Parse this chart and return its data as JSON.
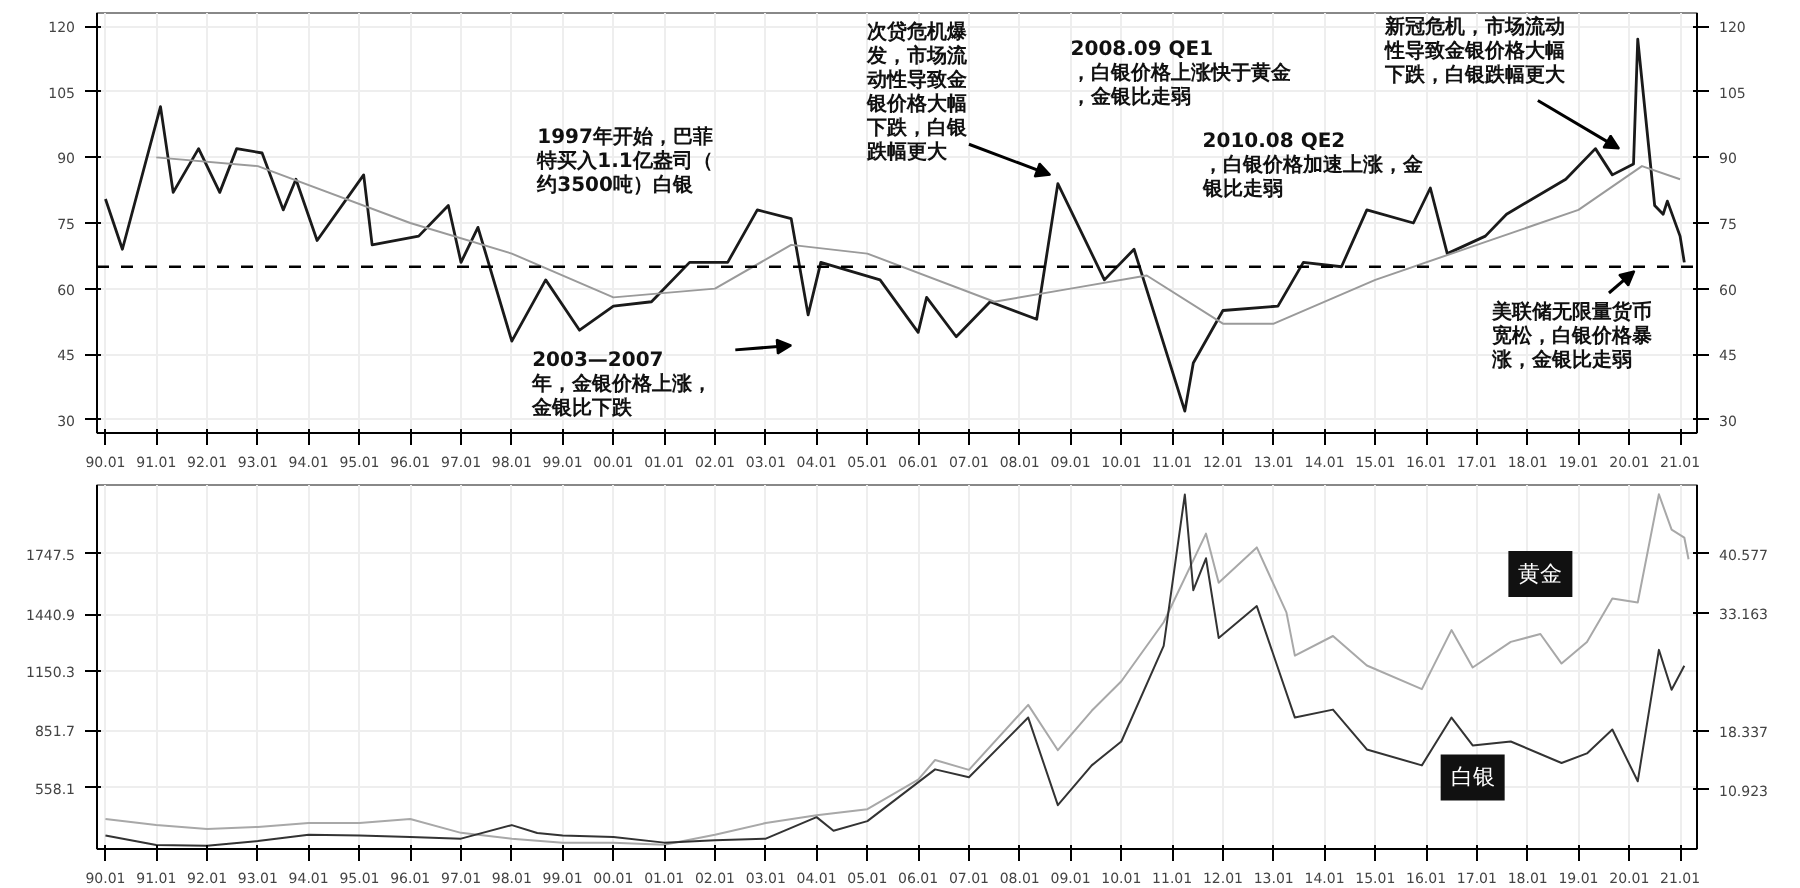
{
  "chart_data": [
    {
      "type": "line",
      "xlim": [
        "1989-11",
        "2021-05"
      ],
      "ylim": [
        27,
        123
      ],
      "yticks": [
        30,
        45,
        60,
        75,
        90,
        105,
        120
      ],
      "y2lim": [
        27,
        123
      ],
      "y2ticks": [
        30,
        45,
        60,
        75,
        90,
        105,
        120
      ],
      "xticks": [
        {
          "value": "1990-01",
          "label": "90.01"
        },
        {
          "value": "1991-01",
          "label": "91.01"
        },
        {
          "value": "1992-01",
          "label": "92.01"
        },
        {
          "value": "1993-01",
          "label": "93.01"
        },
        {
          "value": "1994-01",
          "label": "94.01"
        },
        {
          "value": "1995-01",
          "label": "95.01"
        },
        {
          "value": "1996-01",
          "label": "96.01"
        },
        {
          "value": "1997-01",
          "label": "97.01"
        },
        {
          "value": "1998-01",
          "label": "98.01"
        },
        {
          "value": "1999-01",
          "label": "99.01"
        },
        {
          "value": "2000-01",
          "label": "00.01"
        },
        {
          "value": "2001-01",
          "label": "01.01"
        },
        {
          "value": "2002-01",
          "label": "02.01"
        },
        {
          "value": "2003-01",
          "label": "03.01"
        },
        {
          "value": "2004-01",
          "label": "04.01"
        },
        {
          "value": "2005-01",
          "label": "05.01"
        },
        {
          "value": "2006-01",
          "label": "06.01"
        },
        {
          "value": "2007-01",
          "label": "07.01"
        },
        {
          "value": "2008-01",
          "label": "08.01"
        },
        {
          "value": "2009-01",
          "label": "09.01"
        },
        {
          "value": "2010-01",
          "label": "10.01"
        },
        {
          "value": "2011-01",
          "label": "11.01"
        },
        {
          "value": "2012-01",
          "label": "12.01"
        },
        {
          "value": "2013-01",
          "label": "13.01"
        },
        {
          "value": "2014-01",
          "label": "14.01"
        },
        {
          "value": "2015-01",
          "label": "15.01"
        },
        {
          "value": "2016-01",
          "label": "16.01"
        },
        {
          "value": "2017-01",
          "label": "17.01"
        },
        {
          "value": "2018-01",
          "label": "18.01"
        },
        {
          "value": "2019-01",
          "label": "19.01"
        },
        {
          "value": "2020-01",
          "label": "20.01"
        },
        {
          "value": "2021-01",
          "label": "21.01"
        }
      ],
      "grid": true,
      "series": [
        {
          "color": "#1a1a1a",
          "x": [
            "1990-01",
            "1990-05",
            "1991-02",
            "1991-05",
            "1991-11",
            "1992-04",
            "1992-08",
            "1993-02",
            "1993-07",
            "1993-10",
            "1994-03",
            "1995-02",
            "1995-04",
            "1996-03",
            "1996-10",
            "1997-01",
            "1997-05",
            "1998-01",
            "1998-09",
            "1999-05",
            "2000-01",
            "2000-10",
            "2001-07",
            "2002-04",
            "2002-11",
            "2003-07",
            "2003-11",
            "2004-02",
            "2005-04",
            "2006-01",
            "2006-03",
            "2006-10",
            "2007-06",
            "2008-05",
            "2008-10",
            "2009-05",
            "2009-09",
            "2010-04",
            "2011-04",
            "2011-06",
            "2012-01",
            "2013-02",
            "2013-08",
            "2014-05",
            "2014-11",
            "2015-10",
            "2016-02",
            "2016-06",
            "2017-03",
            "2017-08",
            "2018-10",
            "2019-05",
            "2019-09",
            "2020-02",
            "2020-03",
            "2020-07",
            "2020-09",
            "2020-10",
            "2021-01",
            "2021-02"
          ],
          "values": [
            80.5,
            69,
            101.6,
            82,
            92,
            82,
            92,
            91,
            78,
            85,
            71,
            86,
            70,
            72,
            79,
            66,
            74,
            48,
            62,
            50.5,
            56,
            57,
            66,
            66,
            78,
            76,
            54,
            66,
            62,
            50,
            58,
            49,
            57,
            53,
            84,
            70,
            62,
            69,
            32,
            43,
            55,
            56,
            66,
            65,
            78,
            75,
            83,
            68,
            72,
            77,
            85,
            92,
            86,
            88.5,
            117,
            79,
            77,
            80,
            72,
            66
          ]
        },
        {
          "color": "#9a9a9a",
          "x": [
            "1991-01",
            "1993-01",
            "1996-01",
            "1998-01",
            "2000-01",
            "2002-01",
            "2003-07",
            "2005-01",
            "2007-07",
            "2009-01",
            "2010-07",
            "2012-01",
            "2013-01",
            "2015-01",
            "2017-01",
            "2019-01",
            "2020-04",
            "2021-01"
          ],
          "values": [
            90,
            88,
            75,
            68,
            58,
            60,
            70,
            68,
            57,
            60,
            63,
            52,
            52,
            62,
            70,
            78,
            88,
            85
          ]
        }
      ],
      "ref_lines": [
        {
          "axis": "y",
          "value": 65,
          "line_style": "dashed",
          "color": "#000000"
        }
      ],
      "annotations": [
        "1997年开始，巴菲特买入1.1亿盎司（约3500吨）白银",
        "2003—2007年，金银价格上涨，金银比下跌",
        "次贷危机爆发，市场流动性导致金银价格大幅下跌，白银跌幅更大",
        "2008.09 QE1，白银价格上涨快于黄金，金银比走弱",
        "2010.08 QE2，白银价格加速上涨，金银比走弱",
        "新冠危机，市场流动性导致金银价格大幅下跌，白银跌幅更大",
        "美联储无限量货币宽松，白银价格暴涨，金银比走弱"
      ]
    },
    {
      "type": "line",
      "xlim": [
        "1989-11",
        "2021-05"
      ],
      "ylim": [
        248,
        2097
      ],
      "yticks": [
        558.1,
        851.7,
        1150.3,
        1440.9,
        1747.5
      ],
      "y2lim": [
        3.5,
        49.2
      ],
      "y2ticks": [
        10.923,
        18.337,
        33.163,
        40.577
      ],
      "xticks": [
        {
          "value": "1990-01",
          "label": "90.01"
        },
        {
          "value": "1991-01",
          "label": "91.01"
        },
        {
          "value": "1992-01",
          "label": "92.01"
        },
        {
          "value": "1993-01",
          "label": "93.01"
        },
        {
          "value": "1994-01",
          "label": "94.01"
        },
        {
          "value": "1995-01",
          "label": "95.01"
        },
        {
          "value": "1996-01",
          "label": "96.01"
        },
        {
          "value": "1997-01",
          "label": "97.01"
        },
        {
          "value": "1998-01",
          "label": "98.01"
        },
        {
          "value": "1999-01",
          "label": "99.01"
        },
        {
          "value": "2000-01",
          "label": "00.01"
        },
        {
          "value": "2001-01",
          "label": "01.01"
        },
        {
          "value": "2002-01",
          "label": "02.01"
        },
        {
          "value": "2003-01",
          "label": "03.01"
        },
        {
          "value": "2004-01",
          "label": "04.01"
        },
        {
          "value": "2005-01",
          "label": "05.01"
        },
        {
          "value": "2006-01",
          "label": "06.01"
        },
        {
          "value": "2007-01",
          "label": "07.01"
        },
        {
          "value": "2008-01",
          "label": "08.01"
        },
        {
          "value": "2009-01",
          "label": "09.01"
        },
        {
          "value": "2010-01",
          "label": "10.01"
        },
        {
          "value": "2011-01",
          "label": "11.01"
        },
        {
          "value": "2012-01",
          "label": "12.01"
        },
        {
          "value": "2013-01",
          "label": "13.01"
        },
        {
          "value": "2014-01",
          "label": "14.01"
        },
        {
          "value": "2015-01",
          "label": "15.01"
        },
        {
          "value": "2016-01",
          "label": "16.01"
        },
        {
          "value": "2017-01",
          "label": "17.01"
        },
        {
          "value": "2018-01",
          "label": "18.01"
        },
        {
          "value": "2019-01",
          "label": "19.01"
        },
        {
          "value": "2020-01",
          "label": "20.01"
        },
        {
          "value": "2021-01",
          "label": "21.01"
        }
      ],
      "grid": true,
      "series": [
        {
          "name": "黄金",
          "color": "#a8a8a8",
          "x": [
            "1990-01",
            "1991-01",
            "1992-01",
            "1993-01",
            "1994-01",
            "1995-01",
            "1996-01",
            "1997-01",
            "1998-01",
            "1999-01",
            "2000-01",
            "2001-01",
            "2002-01",
            "2003-01",
            "2004-01",
            "2005-01",
            "2006-01",
            "2006-05",
            "2007-01",
            "2008-03",
            "2008-10",
            "2009-06",
            "2010-01",
            "2010-11",
            "2011-09",
            "2011-12",
            "2012-09",
            "2013-04",
            "2013-06",
            "2014-03",
            "2014-11",
            "2015-12",
            "2016-07",
            "2016-12",
            "2017-09",
            "2018-04",
            "2018-09",
            "2019-03",
            "2019-09",
            "2020-03",
            "2020-08",
            "2020-11",
            "2021-02",
            "2021-03"
          ],
          "values": [
            400,
            370,
            350,
            360,
            380,
            380,
            400,
            330,
            300,
            280,
            280,
            270,
            320,
            380,
            420,
            450,
            600,
            700,
            650,
            980,
            750,
            950,
            1100,
            1400,
            1850,
            1600,
            1780,
            1450,
            1230,
            1330,
            1180,
            1060,
            1360,
            1170,
            1300,
            1340,
            1190,
            1300,
            1520,
            1500,
            2050,
            1870,
            1830,
            1720
          ]
        },
        {
          "name": "白银",
          "color": "#333333",
          "axis": "y2",
          "x": [
            "1990-01",
            "1991-01",
            "1992-01",
            "1993-01",
            "1994-01",
            "1995-01",
            "1996-01",
            "1997-01",
            "1998-01",
            "1998-07",
            "1999-01",
            "2000-01",
            "2001-01",
            "2002-01",
            "2003-01",
            "2004-01",
            "2004-05",
            "2005-01",
            "2006-05",
            "2007-01",
            "2008-03",
            "2008-10",
            "2009-06",
            "2010-01",
            "2010-11",
            "2011-04",
            "2011-06",
            "2011-09",
            "2011-12",
            "2012-09",
            "2013-06",
            "2014-03",
            "2014-11",
            "2015-12",
            "2016-07",
            "2016-12",
            "2017-09",
            "2018-09",
            "2019-03",
            "2019-09",
            "2020-03",
            "2020-08",
            "2020-11",
            "2021-02"
          ],
          "values": [
            5.2,
            4.0,
            3.9,
            4.5,
            5.3,
            5.2,
            5.0,
            4.8,
            6.5,
            5.5,
            5.2,
            5.0,
            4.3,
            4.6,
            4.8,
            7.5,
            5.8,
            7.0,
            13.5,
            12.5,
            20,
            9,
            14,
            17,
            29,
            48,
            36,
            40,
            30,
            34,
            20,
            21,
            16,
            14,
            20,
            16.5,
            17,
            14.3,
            15.5,
            18.5,
            12,
            28.5,
            23.5,
            26.5
          ]
        }
      ]
    }
  ]
}
